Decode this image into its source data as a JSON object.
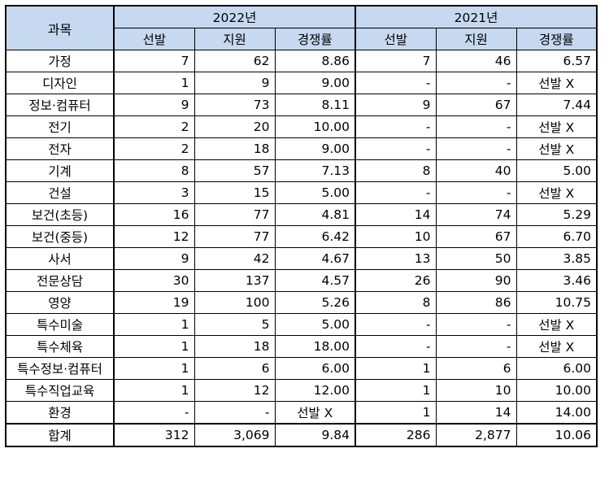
{
  "header": {
    "subject_label": "과목",
    "years": [
      "2022년",
      "2021년"
    ],
    "columns": [
      "선발",
      "지원",
      "경쟁률"
    ]
  },
  "rows": [
    {
      "subject": "가정",
      "y2022": [
        "7",
        "62",
        "8.86"
      ],
      "y2021": [
        "7",
        "46",
        "6.57"
      ]
    },
    {
      "subject": "디자인",
      "y2022": [
        "1",
        "9",
        "9.00"
      ],
      "y2021": [
        "-",
        "-",
        "선발 X"
      ]
    },
    {
      "subject": "정보·컴퓨터",
      "y2022": [
        "9",
        "73",
        "8.11"
      ],
      "y2021": [
        "9",
        "67",
        "7.44"
      ]
    },
    {
      "subject": "전기",
      "y2022": [
        "2",
        "20",
        "10.00"
      ],
      "y2021": [
        "-",
        "-",
        "선발 X"
      ]
    },
    {
      "subject": "전자",
      "y2022": [
        "2",
        "18",
        "9.00"
      ],
      "y2021": [
        "-",
        "-",
        "선발 X"
      ]
    },
    {
      "subject": "기계",
      "y2022": [
        "8",
        "57",
        "7.13"
      ],
      "y2021": [
        "8",
        "40",
        "5.00"
      ]
    },
    {
      "subject": "건설",
      "y2022": [
        "3",
        "15",
        "5.00"
      ],
      "y2021": [
        "-",
        "-",
        "선발 X"
      ]
    },
    {
      "subject": "보건(초등)",
      "y2022": [
        "16",
        "77",
        "4.81"
      ],
      "y2021": [
        "14",
        "74",
        "5.29"
      ]
    },
    {
      "subject": "보건(중등)",
      "y2022": [
        "12",
        "77",
        "6.42"
      ],
      "y2021": [
        "10",
        "67",
        "6.70"
      ]
    },
    {
      "subject": "사서",
      "y2022": [
        "9",
        "42",
        "4.67"
      ],
      "y2021": [
        "13",
        "50",
        "3.85"
      ]
    },
    {
      "subject": "전문상담",
      "y2022": [
        "30",
        "137",
        "4.57"
      ],
      "y2021": [
        "26",
        "90",
        "3.46"
      ]
    },
    {
      "subject": "영양",
      "y2022": [
        "19",
        "100",
        "5.26"
      ],
      "y2021": [
        "8",
        "86",
        "10.75"
      ]
    },
    {
      "subject": "특수미술",
      "y2022": [
        "1",
        "5",
        "5.00"
      ],
      "y2021": [
        "-",
        "-",
        "선발 X"
      ]
    },
    {
      "subject": "특수체육",
      "y2022": [
        "1",
        "18",
        "18.00"
      ],
      "y2021": [
        "-",
        "-",
        "선발 X"
      ]
    },
    {
      "subject": "특수정보·컴퓨터",
      "y2022": [
        "1",
        "6",
        "6.00"
      ],
      "y2021": [
        "1",
        "6",
        "6.00"
      ]
    },
    {
      "subject": "특수직업교육",
      "y2022": [
        "1",
        "12",
        "12.00"
      ],
      "y2021": [
        "1",
        "10",
        "10.00"
      ]
    },
    {
      "subject": "환경",
      "y2022": [
        "-",
        "-",
        "선발 X"
      ],
      "y2021": [
        "1",
        "14",
        "14.00"
      ]
    }
  ],
  "total": {
    "subject": "합계",
    "y2022": [
      "312",
      "3,069",
      "9.84"
    ],
    "y2021": [
      "286",
      "2,877",
      "10.06"
    ]
  }
}
